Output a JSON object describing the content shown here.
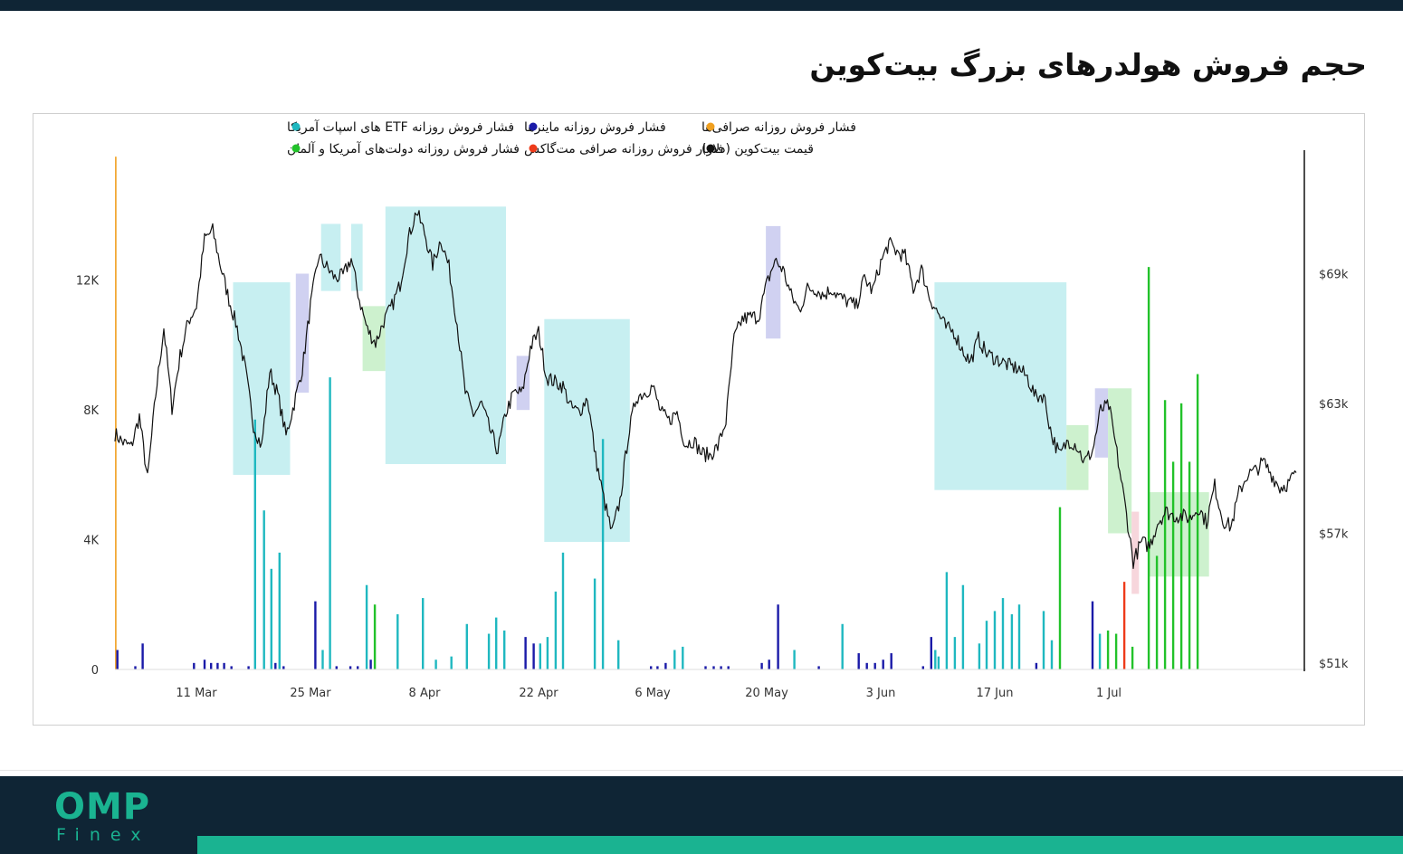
{
  "header": {
    "title": "حجم فروش هولدرهای بزرگ بیت‌کوین"
  },
  "footer": {
    "logo_main": "OMP",
    "logo_sub": "Finex"
  },
  "colors": {
    "etf": "#1fb8c0",
    "miners": "#1a1aa8",
    "exchanges": "#f0a020",
    "gov": "#22c22a",
    "mtgox": "#ee3b1a",
    "price": "#111111",
    "etf_shade": "#bdecee",
    "miner_shade": "#c8c9ee",
    "gov_shade": "#c4efc6",
    "mtgox_shade": "#f6cfd6"
  },
  "chart_data": {
    "type": "bar+line",
    "legend": [
      {
        "key": "etf",
        "label": "فشار فروش روزانه ETF های اسپات آمریکا",
        "color": "#1fb8c0"
      },
      {
        "key": "miners",
        "label": "فشار فروش روزانه ماینرها",
        "color": "#1a1aa8"
      },
      {
        "key": "exchanges",
        "label": "فشار فروش روزانه صرافی‌ها",
        "color": "#f0a020"
      },
      {
        "key": "gov",
        "label": "فشار فروش روزانه دولت‌های آمریکا و آلمان",
        "color": "#22c22a"
      },
      {
        "key": "mtgox",
        "label": "فشار فروش روزانه صرافی مت‌گاکس",
        "color": "#ee3b1a"
      },
      {
        "key": "price",
        "label": "قیمت بیت‌کوین (دلار)",
        "color": "#111111"
      }
    ],
    "x_range_days": [
      0,
      146
    ],
    "x_ticks": [
      {
        "label": "11 Mar",
        "day": 10
      },
      {
        "label": "25 Mar",
        "day": 24
      },
      {
        "label": "8 Apr",
        "day": 38
      },
      {
        "label": "22 Apr",
        "day": 52
      },
      {
        "label": "6 May",
        "day": 66
      },
      {
        "label": "20 May",
        "day": 80
      },
      {
        "label": "3 Jun",
        "day": 94
      },
      {
        "label": "17 Jun",
        "day": 108
      },
      {
        "label": "1 Jul",
        "day": 122
      }
    ],
    "y_left": {
      "min": 0,
      "max": 16000,
      "ticks": [
        {
          "v": 0,
          "label": "0"
        },
        {
          "v": 4000,
          "label": "4K"
        },
        {
          "v": 8000,
          "label": "8K"
        },
        {
          "v": 12000,
          "label": "12K"
        }
      ]
    },
    "y_right": {
      "min": 51000,
      "max": 70000,
      "ticks": [
        {
          "v": 51000,
          "label": "$51k"
        },
        {
          "v": 57000,
          "label": "$57k"
        },
        {
          "v": 63000,
          "label": "$63k"
        },
        {
          "v": 69000,
          "label": "$69k"
        }
      ]
    },
    "shaded_periods": [
      {
        "type": "etf",
        "start": 14.5,
        "end": 21.5,
        "from": 59700,
        "to": 68600
      },
      {
        "type": "miners",
        "start": 22.2,
        "end": 23.8,
        "from": 63500,
        "to": 69000
      },
      {
        "type": "etf",
        "start": 25.3,
        "end": 27.7,
        "from": 68200,
        "to": 71300
      },
      {
        "type": "etf",
        "start": 29.0,
        "end": 30.4,
        "from": 68200,
        "to": 71300
      },
      {
        "type": "gov",
        "start": 30.4,
        "end": 33.2,
        "from": 64500,
        "to": 67500
      },
      {
        "type": "etf",
        "start": 33.2,
        "end": 48.0,
        "from": 60200,
        "to": 72100
      },
      {
        "type": "miners",
        "start": 49.3,
        "end": 50.9,
        "from": 62700,
        "to": 65200
      },
      {
        "type": "etf",
        "start": 52.7,
        "end": 63.2,
        "from": 56600,
        "to": 66900
      },
      {
        "type": "miners",
        "start": 79.9,
        "end": 81.7,
        "from": 66000,
        "to": 71200
      },
      {
        "type": "etf",
        "start": 100.6,
        "end": 116.8,
        "from": 59000,
        "to": 68600
      },
      {
        "type": "gov",
        "start": 116.8,
        "end": 119.5,
        "from": 59000,
        "to": 62000
      },
      {
        "type": "miners",
        "start": 120.3,
        "end": 121.9,
        "from": 60500,
        "to": 63700
      },
      {
        "type": "gov",
        "start": 121.9,
        "end": 124.8,
        "from": 57000,
        "to": 63700
      },
      {
        "type": "mtgox",
        "start": 124.8,
        "end": 125.7,
        "from": 54200,
        "to": 58000
      },
      {
        "type": "gov",
        "start": 126.9,
        "end": 134.3,
        "from": 55000,
        "to": 58900
      }
    ],
    "series_price": [
      [
        0,
        61600
      ],
      [
        1,
        61200
      ],
      [
        2,
        61000
      ],
      [
        3,
        62400
      ],
      [
        4,
        59500
      ],
      [
        5,
        63400
      ],
      [
        6,
        66500
      ],
      [
        7,
        62800
      ],
      [
        8,
        65200
      ],
      [
        9,
        66800
      ],
      [
        10,
        67500
      ],
      [
        11,
        70600
      ],
      [
        12,
        71000
      ],
      [
        13,
        69300
      ],
      [
        14,
        67800
      ],
      [
        15,
        66500
      ],
      [
        16,
        64600
      ],
      [
        17,
        62000
      ],
      [
        18,
        61000
      ],
      [
        19,
        64500
      ],
      [
        20,
        63400
      ],
      [
        21,
        61500
      ],
      [
        22,
        63000
      ],
      [
        23,
        64600
      ],
      [
        24,
        67500
      ],
      [
        25,
        69800
      ],
      [
        26,
        69300
      ],
      [
        27,
        68800
      ],
      [
        28,
        68900
      ],
      [
        29,
        69700
      ],
      [
        30,
        67800
      ],
      [
        31,
        66400
      ],
      [
        32,
        65800
      ],
      [
        33,
        66800
      ],
      [
        34,
        67500
      ],
      [
        35,
        68500
      ],
      [
        36,
        70600
      ],
      [
        37,
        71900
      ],
      [
        38,
        70900
      ],
      [
        39,
        69400
      ],
      [
        40,
        70600
      ],
      [
        41,
        69300
      ],
      [
        42,
        66700
      ],
      [
        43,
        63500
      ],
      [
        44,
        62500
      ],
      [
        45,
        63000
      ],
      [
        46,
        61800
      ],
      [
        47,
        60800
      ],
      [
        48,
        62600
      ],
      [
        49,
        63500
      ],
      [
        50,
        63500
      ],
      [
        51,
        65600
      ],
      [
        52,
        66300
      ],
      [
        53,
        64200
      ],
      [
        54,
        64000
      ],
      [
        55,
        63800
      ],
      [
        56,
        62800
      ],
      [
        57,
        62600
      ],
      [
        58,
        63300
      ],
      [
        59,
        60500
      ],
      [
        60,
        58600
      ],
      [
        61,
        57000
      ],
      [
        62,
        58500
      ],
      [
        63,
        61500
      ],
      [
        64,
        63300
      ],
      [
        65,
        63500
      ],
      [
        66,
        63800
      ],
      [
        67,
        62600
      ],
      [
        68,
        62200
      ],
      [
        69,
        62600
      ],
      [
        70,
        61100
      ],
      [
        71,
        61300
      ],
      [
        72,
        60700
      ],
      [
        73,
        60600
      ],
      [
        74,
        61000
      ],
      [
        75,
        62200
      ],
      [
        76,
        66000
      ],
      [
        77,
        66900
      ],
      [
        78,
        67000
      ],
      [
        79,
        67000
      ],
      [
        80,
        68500
      ],
      [
        81,
        69600
      ],
      [
        82,
        69200
      ],
      [
        83,
        68000
      ],
      [
        84,
        67300
      ],
      [
        85,
        68300
      ],
      [
        86,
        68300
      ],
      [
        87,
        68000
      ],
      [
        88,
        68300
      ],
      [
        89,
        67900
      ],
      [
        90,
        67700
      ],
      [
        91,
        67500
      ],
      [
        92,
        68800
      ],
      [
        93,
        68200
      ],
      [
        94,
        69500
      ],
      [
        95,
        70400
      ],
      [
        96,
        70000
      ],
      [
        97,
        69800
      ],
      [
        98,
        68300
      ],
      [
        99,
        69200
      ],
      [
        100,
        67900
      ],
      [
        101,
        67200
      ],
      [
        102,
        66500
      ],
      [
        103,
        66300
      ],
      [
        104,
        65500
      ],
      [
        105,
        64900
      ],
      [
        106,
        66000
      ],
      [
        107,
        65300
      ],
      [
        108,
        65100
      ],
      [
        109,
        64900
      ],
      [
        110,
        64700
      ],
      [
        111,
        64600
      ],
      [
        112,
        64200
      ],
      [
        113,
        63300
      ],
      [
        114,
        63400
      ],
      [
        115,
        61500
      ],
      [
        116,
        60600
      ],
      [
        117,
        61300
      ],
      [
        118,
        61100
      ],
      [
        119,
        60300
      ],
      [
        120,
        60800
      ],
      [
        121,
        62700
      ],
      [
        122,
        62900
      ],
      [
        123,
        60700
      ],
      [
        124,
        58300
      ],
      [
        125,
        55700
      ],
      [
        126,
        56600
      ],
      [
        127,
        56400
      ],
      [
        128,
        57500
      ],
      [
        129,
        58000
      ],
      [
        130,
        57800
      ],
      [
        131,
        57800
      ],
      [
        132,
        57700
      ],
      [
        133,
        58200
      ],
      [
        134,
        57500
      ],
      [
        135,
        59200
      ],
      [
        136,
        57600
      ],
      [
        137,
        57300
      ],
      [
        138,
        58900
      ],
      [
        139,
        59700
      ],
      [
        140,
        59900
      ],
      [
        141,
        60300
      ],
      [
        142,
        59700
      ],
      [
        143,
        59100
      ],
      [
        144,
        59300
      ],
      [
        145,
        59800
      ]
    ],
    "series_bars": [
      {
        "type": "exchanges",
        "day": 0.1,
        "value": 15800
      },
      {
        "type": "miners",
        "day": 0.3,
        "value": 600
      },
      {
        "type": "miners",
        "day": 2.5,
        "value": 100
      },
      {
        "type": "miners",
        "day": 3.4,
        "value": 800
      },
      {
        "type": "miners",
        "day": 9.7,
        "value": 200
      },
      {
        "type": "miners",
        "day": 11,
        "value": 300
      },
      {
        "type": "miners",
        "day": 11.8,
        "value": 200
      },
      {
        "type": "miners",
        "day": 12.6,
        "value": 200
      },
      {
        "type": "miners",
        "day": 13.4,
        "value": 200
      },
      {
        "type": "miners",
        "day": 14.3,
        "value": 100
      },
      {
        "type": "miners",
        "day": 16.4,
        "value": 100
      },
      {
        "type": "etf",
        "day": 17.2,
        "value": 7700
      },
      {
        "type": "etf",
        "day": 18.3,
        "value": 4900
      },
      {
        "type": "etf",
        "day": 19.2,
        "value": 3100
      },
      {
        "type": "miners",
        "day": 19.7,
        "value": 200
      },
      {
        "type": "etf",
        "day": 20.2,
        "value": 3600
      },
      {
        "type": "miners",
        "day": 20.7,
        "value": 100
      },
      {
        "type": "miners",
        "day": 24.6,
        "value": 2100
      },
      {
        "type": "etf",
        "day": 25.5,
        "value": 600
      },
      {
        "type": "etf",
        "day": 26.4,
        "value": 9000
      },
      {
        "type": "miners",
        "day": 27.2,
        "value": 100
      },
      {
        "type": "miners",
        "day": 28.9,
        "value": 100
      },
      {
        "type": "miners",
        "day": 29.8,
        "value": 100
      },
      {
        "type": "etf",
        "day": 30.9,
        "value": 2600
      },
      {
        "type": "miners",
        "day": 31.4,
        "value": 300
      },
      {
        "type": "gov",
        "day": 31.9,
        "value": 2000
      },
      {
        "type": "etf",
        "day": 34.7,
        "value": 1700
      },
      {
        "type": "etf",
        "day": 37.8,
        "value": 2200
      },
      {
        "type": "etf",
        "day": 39.4,
        "value": 300
      },
      {
        "type": "etf",
        "day": 41.3,
        "value": 400
      },
      {
        "type": "etf",
        "day": 43.2,
        "value": 1400
      },
      {
        "type": "etf",
        "day": 45.9,
        "value": 1100
      },
      {
        "type": "etf",
        "day": 46.8,
        "value": 1600
      },
      {
        "type": "etf",
        "day": 47.8,
        "value": 1200
      },
      {
        "type": "miners",
        "day": 50.4,
        "value": 1000
      },
      {
        "type": "miners",
        "day": 51.4,
        "value": 800
      },
      {
        "type": "etf",
        "day": 52.2,
        "value": 800
      },
      {
        "type": "etf",
        "day": 53.1,
        "value": 1000
      },
      {
        "type": "etf",
        "day": 54.1,
        "value": 2400
      },
      {
        "type": "etf",
        "day": 55.0,
        "value": 3600
      },
      {
        "type": "etf",
        "day": 58.9,
        "value": 2800
      },
      {
        "type": "etf",
        "day": 59.9,
        "value": 7100
      },
      {
        "type": "etf",
        "day": 61.8,
        "value": 900
      },
      {
        "type": "miners",
        "day": 65.8,
        "value": 100
      },
      {
        "type": "miners",
        "day": 66.6,
        "value": 100
      },
      {
        "type": "miners",
        "day": 67.6,
        "value": 200
      },
      {
        "type": "etf",
        "day": 68.7,
        "value": 600
      },
      {
        "type": "etf",
        "day": 69.7,
        "value": 700
      },
      {
        "type": "miners",
        "day": 72.5,
        "value": 100
      },
      {
        "type": "miners",
        "day": 73.5,
        "value": 100
      },
      {
        "type": "miners",
        "day": 74.4,
        "value": 100
      },
      {
        "type": "miners",
        "day": 75.3,
        "value": 100
      },
      {
        "type": "miners",
        "day": 79.4,
        "value": 200
      },
      {
        "type": "miners",
        "day": 80.3,
        "value": 300
      },
      {
        "type": "miners",
        "day": 81.4,
        "value": 2000
      },
      {
        "type": "etf",
        "day": 83.4,
        "value": 600
      },
      {
        "type": "miners",
        "day": 86.4,
        "value": 100
      },
      {
        "type": "etf",
        "day": 89.3,
        "value": 1400
      },
      {
        "type": "miners",
        "day": 91.3,
        "value": 500
      },
      {
        "type": "miners",
        "day": 92.3,
        "value": 200
      },
      {
        "type": "miners",
        "day": 93.3,
        "value": 200
      },
      {
        "type": "miners",
        "day": 94.3,
        "value": 300
      },
      {
        "type": "miners",
        "day": 95.3,
        "value": 500
      },
      {
        "type": "miners",
        "day": 99.2,
        "value": 100
      },
      {
        "type": "miners",
        "day": 100.2,
        "value": 1000
      },
      {
        "type": "etf",
        "day": 100.7,
        "value": 600
      },
      {
        "type": "etf",
        "day": 101.1,
        "value": 400
      },
      {
        "type": "etf",
        "day": 102.1,
        "value": 3000
      },
      {
        "type": "etf",
        "day": 103.1,
        "value": 1000
      },
      {
        "type": "etf",
        "day": 104.1,
        "value": 2600
      },
      {
        "type": "etf",
        "day": 106.1,
        "value": 800
      },
      {
        "type": "etf",
        "day": 107.0,
        "value": 1500
      },
      {
        "type": "etf",
        "day": 108.0,
        "value": 1800
      },
      {
        "type": "etf",
        "day": 109.0,
        "value": 2200
      },
      {
        "type": "etf",
        "day": 110.1,
        "value": 1700
      },
      {
        "type": "etf",
        "day": 111.0,
        "value": 2000
      },
      {
        "type": "miners",
        "day": 113.1,
        "value": 200
      },
      {
        "type": "etf",
        "day": 114.0,
        "value": 1800
      },
      {
        "type": "etf",
        "day": 115.0,
        "value": 900
      },
      {
        "type": "gov",
        "day": 116.0,
        "value": 5000
      },
      {
        "type": "miners",
        "day": 120.0,
        "value": 2100
      },
      {
        "type": "etf",
        "day": 120.9,
        "value": 1100
      },
      {
        "type": "gov",
        "day": 121.9,
        "value": 1200
      },
      {
        "type": "gov",
        "day": 122.9,
        "value": 1100
      },
      {
        "type": "mtgox",
        "day": 123.9,
        "value": 2700
      },
      {
        "type": "gov",
        "day": 124.9,
        "value": 700
      },
      {
        "type": "gov",
        "day": 126.9,
        "value": 12400
      },
      {
        "type": "gov",
        "day": 127.9,
        "value": 3500
      },
      {
        "type": "gov",
        "day": 128.9,
        "value": 8300
      },
      {
        "type": "gov",
        "day": 129.9,
        "value": 6400
      },
      {
        "type": "gov",
        "day": 130.9,
        "value": 8200
      },
      {
        "type": "gov",
        "day": 131.9,
        "value": 6400
      },
      {
        "type": "gov",
        "day": 132.9,
        "value": 9100
      }
    ]
  }
}
